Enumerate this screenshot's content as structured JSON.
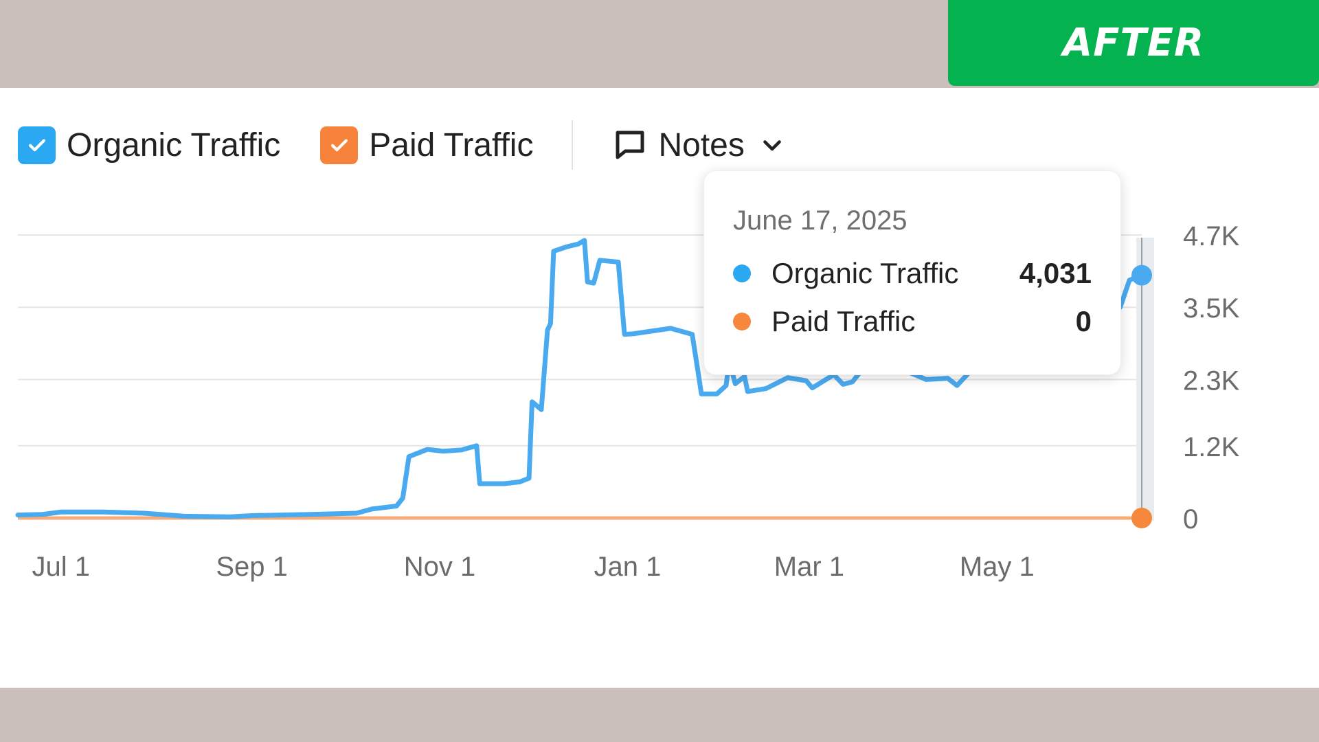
{
  "badge": {
    "label": "AFTER"
  },
  "legend": {
    "organic_label": "Organic Traffic",
    "paid_label": "Paid Traffic",
    "notes_label": "Notes"
  },
  "colors": {
    "organic": "#4aaaf0",
    "paid": "#f5883c",
    "organic_checkbox": "#2aa8f2",
    "paid_checkbox": "#f7823b",
    "grid": "#e6e6e6",
    "axis_text": "#6b6b6b"
  },
  "tooltip": {
    "date": "June 17, 2025",
    "rows": [
      {
        "name": "Organic Traffic",
        "value": "4,031"
      },
      {
        "name": "Paid Traffic",
        "value": "0"
      }
    ]
  },
  "chart_data": {
    "type": "line",
    "xlabel": "",
    "ylabel": "",
    "x_range": [
      "2024-06-17",
      "2025-06-17"
    ],
    "ylim": [
      0,
      4700
    ],
    "x_tick_labels": [
      "Jul 1",
      "Sep 1",
      "Nov 1",
      "Jan 1",
      "Mar 1",
      "May 1"
    ],
    "x_tick_dates": [
      "2024-07-01",
      "2024-09-01",
      "2024-11-01",
      "2025-01-01",
      "2025-03-01",
      "2025-05-01"
    ],
    "y_tick_labels": [
      "4.7K",
      "3.5K",
      "2.3K",
      "1.2K",
      "0"
    ],
    "y_tick_values": [
      4700,
      3500,
      2300,
      1200,
      0
    ],
    "grid": true,
    "legend": "top-left",
    "series": [
      {
        "name": "Organic Traffic",
        "points": [
          [
            "2024-06-17",
            50
          ],
          [
            "2024-06-25",
            60
          ],
          [
            "2024-07-01",
            100
          ],
          [
            "2024-07-15",
            100
          ],
          [
            "2024-07-28",
            80
          ],
          [
            "2024-08-10",
            30
          ],
          [
            "2024-08-25",
            20
          ],
          [
            "2024-09-01",
            40
          ],
          [
            "2024-09-20",
            60
          ],
          [
            "2024-10-05",
            80
          ],
          [
            "2024-10-10",
            150
          ],
          [
            "2024-10-18",
            200
          ],
          [
            "2024-10-20",
            330
          ],
          [
            "2024-10-22",
            1020
          ],
          [
            "2024-10-28",
            1140
          ],
          [
            "2024-11-02",
            1110
          ],
          [
            "2024-11-08",
            1130
          ],
          [
            "2024-11-13",
            1200
          ],
          [
            "2024-11-14",
            570
          ],
          [
            "2024-11-22",
            570
          ],
          [
            "2024-11-27",
            600
          ],
          [
            "2024-11-30",
            660
          ],
          [
            "2024-12-01",
            1930
          ],
          [
            "2024-12-04",
            1800
          ],
          [
            "2024-12-06",
            3120
          ],
          [
            "2024-12-07",
            3230
          ],
          [
            "2024-12-08",
            4430
          ],
          [
            "2024-12-12",
            4500
          ],
          [
            "2024-12-16",
            4550
          ],
          [
            "2024-12-18",
            4610
          ],
          [
            "2024-12-19",
            3920
          ],
          [
            "2024-12-21",
            3900
          ],
          [
            "2024-12-23",
            4280
          ],
          [
            "2024-12-29",
            4250
          ],
          [
            "2024-12-31",
            3050
          ],
          [
            "2025-01-03",
            3060
          ],
          [
            "2025-01-15",
            3150
          ],
          [
            "2025-01-22",
            3050
          ],
          [
            "2025-01-25",
            2060
          ],
          [
            "2025-01-30",
            2060
          ],
          [
            "2025-02-02",
            2200
          ],
          [
            "2025-02-03",
            2600
          ],
          [
            "2025-02-05",
            2230
          ],
          [
            "2025-02-08",
            2350
          ],
          [
            "2025-02-09",
            2100
          ],
          [
            "2025-02-15",
            2150
          ],
          [
            "2025-02-22",
            2330
          ],
          [
            "2025-02-28",
            2280
          ],
          [
            "2025-03-02",
            2160
          ],
          [
            "2025-03-09",
            2380
          ],
          [
            "2025-03-12",
            2220
          ],
          [
            "2025-03-15",
            2260
          ],
          [
            "2025-03-18",
            2450
          ],
          [
            "2025-03-25",
            2460
          ],
          [
            "2025-04-01",
            2450
          ],
          [
            "2025-04-08",
            2300
          ],
          [
            "2025-04-15",
            2320
          ],
          [
            "2025-04-18",
            2200
          ],
          [
            "2025-04-22",
            2420
          ],
          [
            "2025-05-01",
            2420
          ],
          [
            "2025-05-14",
            2460
          ],
          [
            "2025-06-06",
            2500
          ],
          [
            "2025-06-07",
            4250
          ],
          [
            "2025-06-10",
            3500
          ],
          [
            "2025-06-13",
            3950
          ],
          [
            "2025-06-17",
            4031
          ]
        ]
      },
      {
        "name": "Paid Traffic",
        "points": [
          [
            "2024-06-17",
            0
          ],
          [
            "2025-06-17",
            0
          ]
        ]
      }
    ]
  }
}
